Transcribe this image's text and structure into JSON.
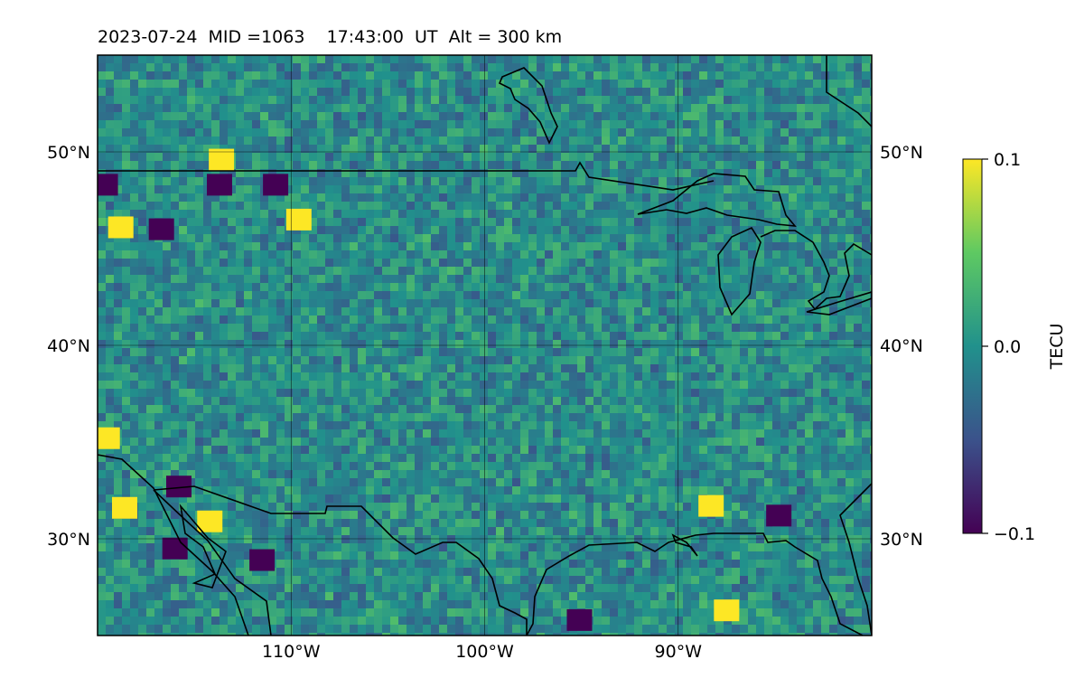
{
  "header": {
    "title": "2023-07-24  MID =1063    17:43:00  UT  Alt = 300 km"
  },
  "map": {
    "lat_range": [
      25,
      55
    ],
    "lon_range": [
      -120,
      -80
    ],
    "lat_ticks": [
      {
        "value": 30,
        "label": "30°N"
      },
      {
        "value": 40,
        "label": "40°N"
      },
      {
        "value": 50,
        "label": "50°N"
      }
    ],
    "lon_ticks": [
      {
        "value": -110,
        "label": "110°W"
      },
      {
        "value": -100,
        "label": "100°W"
      },
      {
        "value": -90,
        "label": "90°W"
      }
    ],
    "gridlines": true,
    "colormap": "viridis",
    "colormap_stops": [
      "#440154",
      "#3b528b",
      "#21918c",
      "#5ec962",
      "#fde725"
    ]
  },
  "colorbar": {
    "label": "TECU",
    "min": -0.1,
    "max": 0.1,
    "ticks": [
      {
        "value": 0.1,
        "label": "0.1"
      },
      {
        "value": 0.0,
        "label": "0.0"
      },
      {
        "value": -0.1,
        "label": "−0.1"
      }
    ]
  },
  "chart_data": {
    "type": "heatmap",
    "title": "2023-07-24  MID =1063    17:43:00  UT  Alt = 300 km",
    "xlabel": "",
    "ylabel": "",
    "xlim": [
      -120,
      -80
    ],
    "ylim": [
      25,
      55
    ],
    "colorbar_label": "TECU",
    "clim": [
      -0.1,
      0.1
    ],
    "grid": true,
    "hotspots": [
      {
        "lon": -118.8,
        "lat": 46.1,
        "value": 0.1
      },
      {
        "lon": -118.6,
        "lat": 31.6,
        "value": 0.1
      },
      {
        "lon": -119.5,
        "lat": 35.2,
        "value": 0.1
      },
      {
        "lon": -113.6,
        "lat": 49.6,
        "value": 0.1
      },
      {
        "lon": -109.6,
        "lat": 46.5,
        "value": 0.1
      },
      {
        "lon": -114.2,
        "lat": 30.9,
        "value": 0.1
      },
      {
        "lon": -87.5,
        "lat": 26.3,
        "value": 0.1
      },
      {
        "lon": -88.3,
        "lat": 31.7,
        "value": 0.1
      },
      {
        "lon": -116.7,
        "lat": 46.0,
        "value": -0.1
      },
      {
        "lon": -111.5,
        "lat": 28.9,
        "value": -0.1
      },
      {
        "lon": -110.8,
        "lat": 48.3,
        "value": -0.1
      },
      {
        "lon": -113.7,
        "lat": 48.3,
        "value": -0.1
      },
      {
        "lon": -95.1,
        "lat": 25.8,
        "value": -0.1
      },
      {
        "lon": -84.8,
        "lat": 31.2,
        "value": -0.1
      },
      {
        "lon": -119.6,
        "lat": 48.3,
        "value": -0.1
      },
      {
        "lon": -115.8,
        "lat": 32.7,
        "value": -0.1
      },
      {
        "lon": -116.0,
        "lat": 29.5,
        "value": -0.1
      }
    ],
    "background_value": 0.0
  }
}
